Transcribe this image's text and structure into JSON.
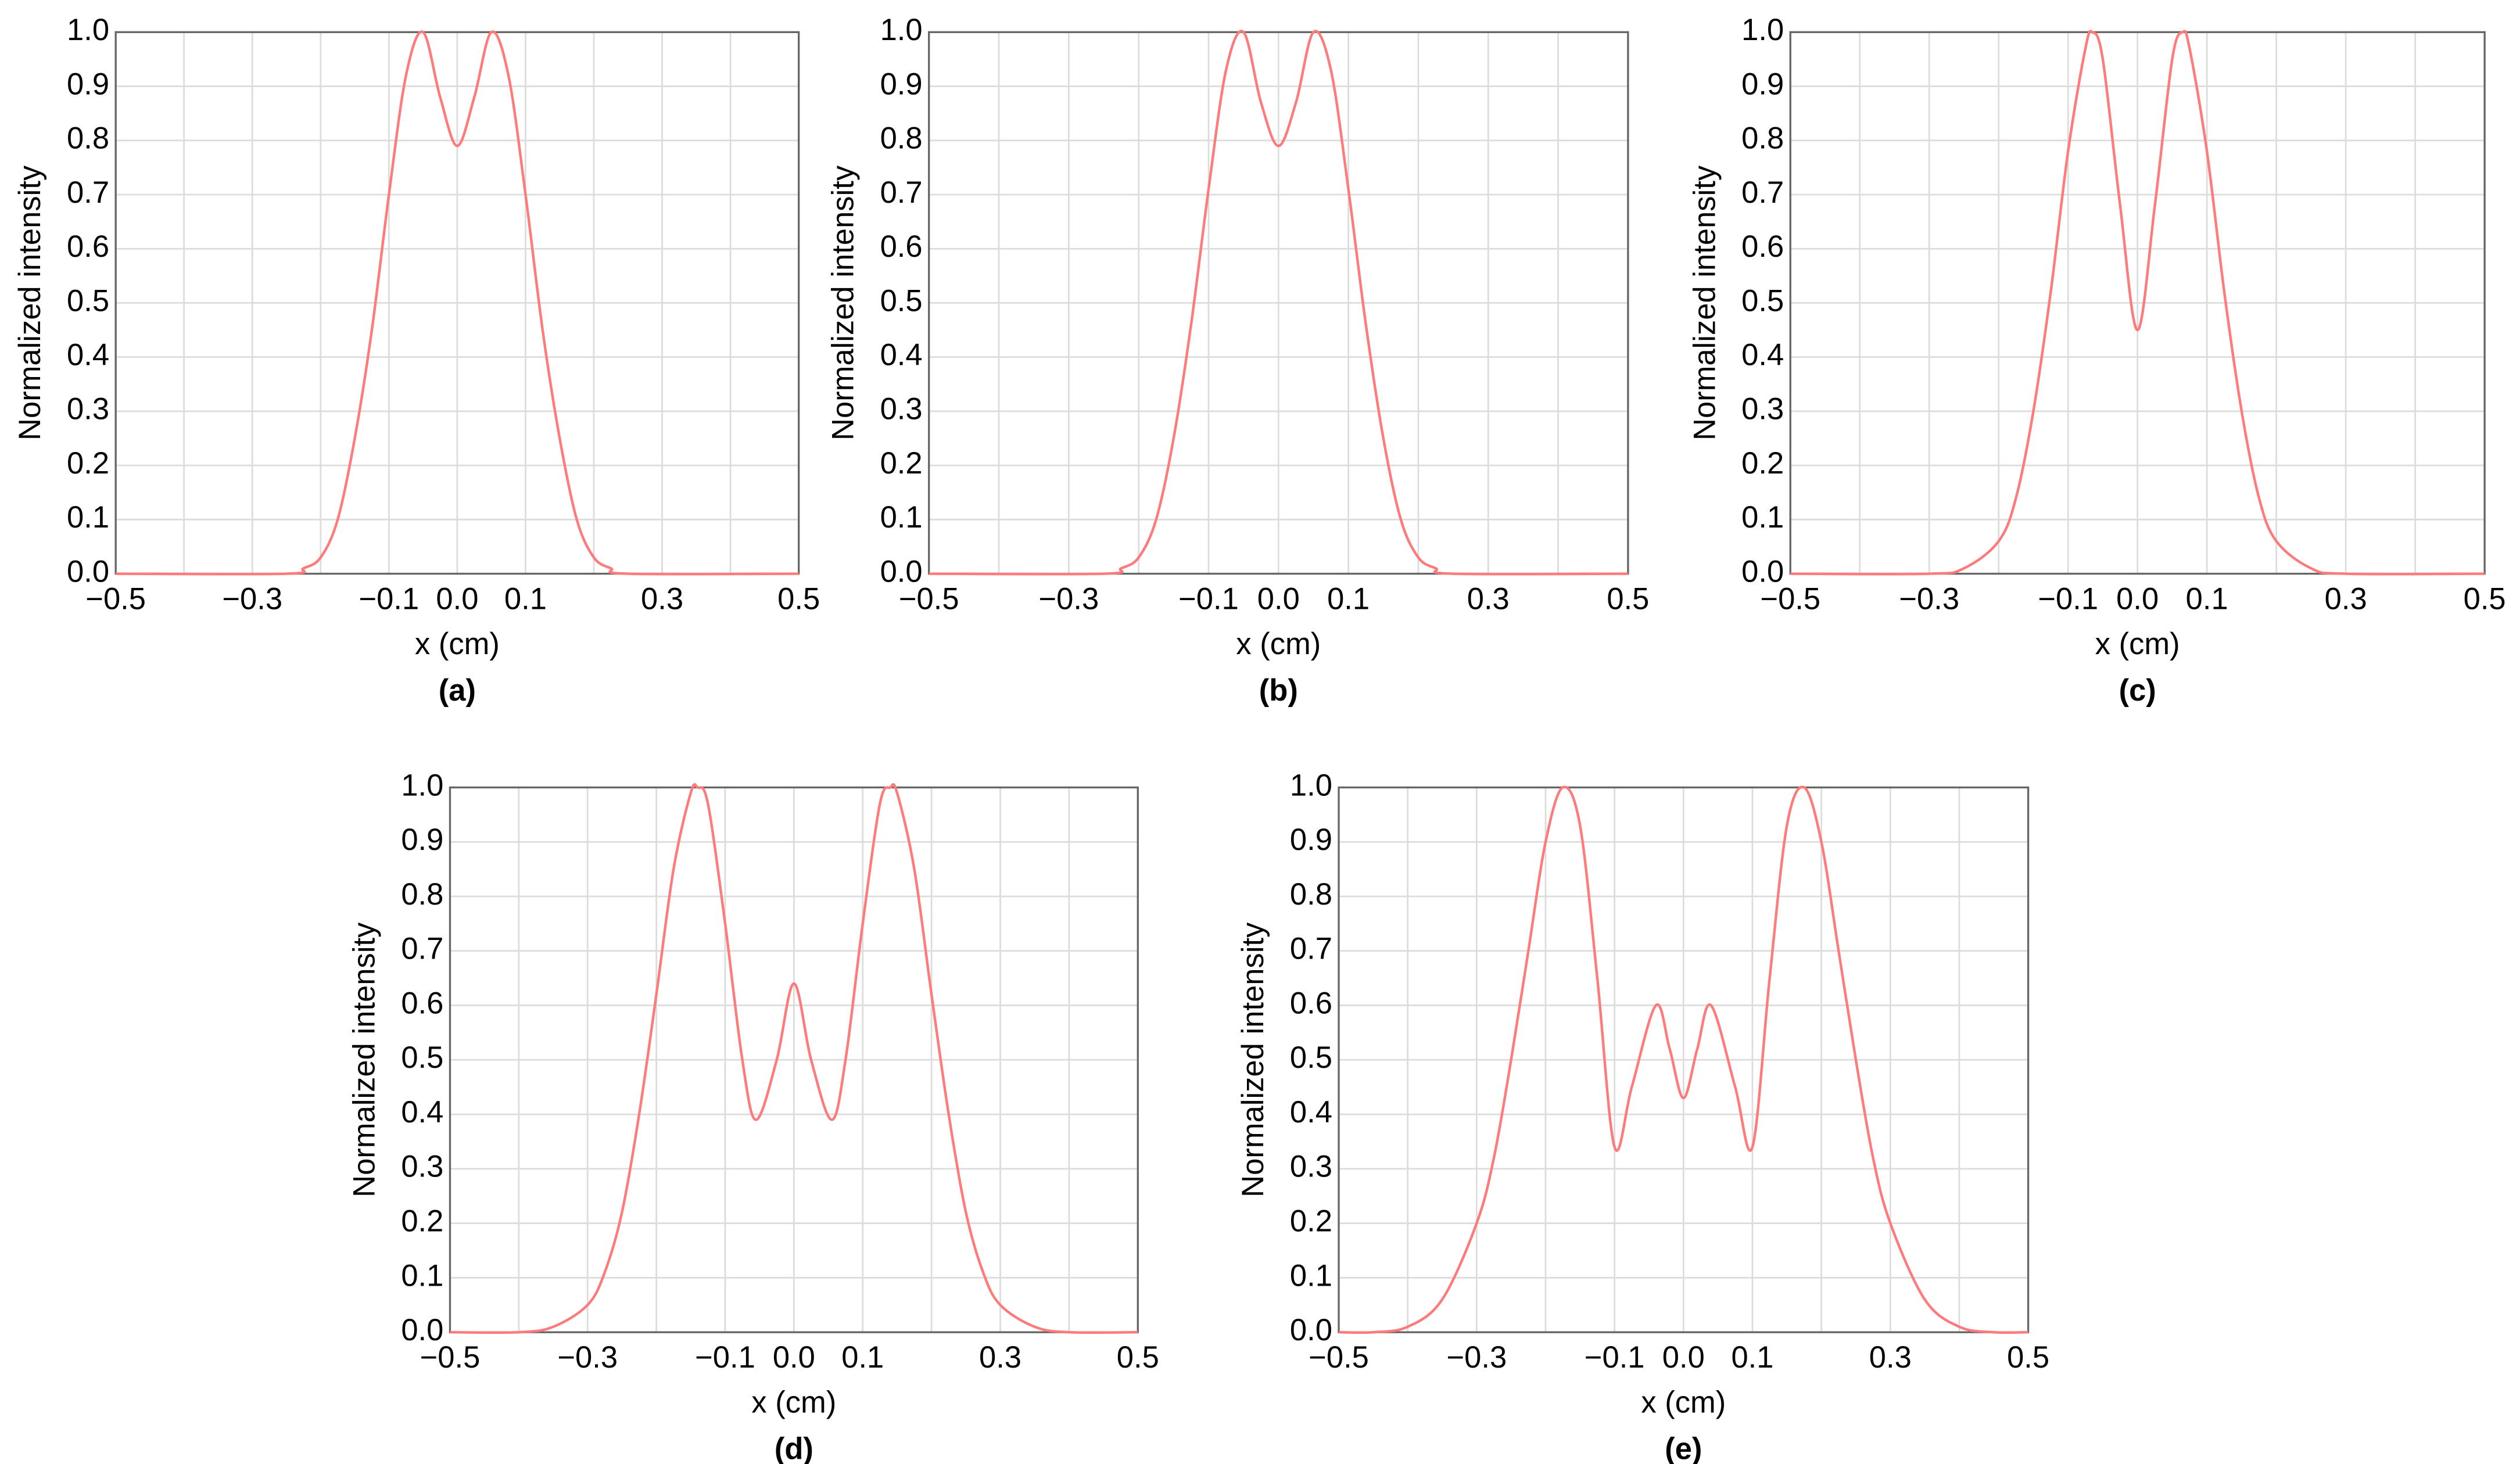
{
  "chart_data": [
    {
      "type": "line",
      "panel_label": "(a)",
      "x_label": "x (cm)",
      "y_label": "Normalized intensity",
      "x": [
        -0.5,
        -0.25,
        -0.225,
        -0.2,
        -0.175,
        -0.15,
        -0.125,
        -0.1,
        -0.075,
        -0.05,
        -0.025,
        0,
        0.025,
        0.05,
        0.075,
        0.1,
        0.125,
        0.15,
        0.175,
        0.2,
        0.225,
        0.25,
        0.5
      ],
      "series": [
        {
          "color": "#ff7a7a",
          "values": [
            0,
            0,
            0.01,
            0.03,
            0.1,
            0.25,
            0.45,
            0.7,
            0.92,
            1.0,
            0.88,
            0.79,
            0.88,
            1.0,
            0.92,
            0.7,
            0.45,
            0.25,
            0.1,
            0.03,
            0.01,
            0,
            0
          ]
        }
      ],
      "xlim": [
        -0.5,
        0.5
      ],
      "ylim": [
        0,
        1
      ],
      "xticks": [
        {
          "value": -0.5,
          "label": "−0.5"
        },
        {
          "value": -0.3,
          "label": "−0.3"
        },
        {
          "value": -0.1,
          "label": "−0.1"
        },
        {
          "value": 0,
          "label": "0.0"
        },
        0.1,
        0.3,
        0.5
      ],
      "x_minor_grid": [
        -0.4,
        -0.2,
        0.2,
        0.4
      ],
      "yticks": [
        {
          "value": 0,
          "label": "0.0"
        },
        0.1,
        0.2,
        0.3,
        0.4,
        0.5,
        0.6,
        0.7,
        0.8,
        0.9,
        {
          "value": 1,
          "label": "1.0"
        }
      ],
      "grid": true
    },
    {
      "type": "line",
      "panel_label": "(b)",
      "x_label": "x (cm)",
      "y_label": "Normalized intensity",
      "x": [
        -0.5,
        -0.25,
        -0.225,
        -0.2,
        -0.175,
        -0.15,
        -0.125,
        -0.1,
        -0.075,
        -0.05,
        -0.025,
        0,
        0.025,
        0.05,
        0.075,
        0.1,
        0.125,
        0.15,
        0.175,
        0.2,
        0.225,
        0.25,
        0.5
      ],
      "series": [
        {
          "color": "#ff7a7a",
          "values": [
            0,
            0,
            0.01,
            0.03,
            0.1,
            0.25,
            0.46,
            0.71,
            0.93,
            1.0,
            0.87,
            0.79,
            0.87,
            1.0,
            0.93,
            0.71,
            0.46,
            0.25,
            0.1,
            0.03,
            0.01,
            0,
            0
          ]
        }
      ],
      "xlim": [
        -0.5,
        0.5
      ],
      "ylim": [
        0,
        1
      ],
      "xticks": [
        {
          "value": -0.5,
          "label": "−0.5"
        },
        {
          "value": -0.3,
          "label": "−0.3"
        },
        {
          "value": -0.1,
          "label": "−0.1"
        },
        {
          "value": 0,
          "label": "0.0"
        },
        0.1,
        0.3,
        0.5
      ],
      "x_minor_grid": [
        -0.4,
        -0.2,
        0.2,
        0.4
      ],
      "yticks": [
        {
          "value": 0,
          "label": "0.0"
        },
        0.1,
        0.2,
        0.3,
        0.4,
        0.5,
        0.6,
        0.7,
        0.8,
        0.9,
        {
          "value": 1,
          "label": "1.0"
        }
      ],
      "grid": true
    },
    {
      "type": "line",
      "panel_label": "(c)",
      "x_label": "x (cm)",
      "y_label": "Normalized intensity",
      "x": [
        -0.5,
        -0.3,
        -0.25,
        -0.2,
        -0.175,
        -0.15,
        -0.125,
        -0.1,
        -0.075,
        -0.065,
        -0.05,
        -0.025,
        0,
        0.025,
        0.05,
        0.065,
        0.075,
        0.1,
        0.125,
        0.15,
        0.175,
        0.2,
        0.25,
        0.3,
        0.5
      ],
      "series": [
        {
          "color": "#ff7a7a",
          "values": [
            0,
            0,
            0.01,
            0.06,
            0.14,
            0.3,
            0.52,
            0.78,
            0.97,
            1.0,
            0.95,
            0.68,
            0.45,
            0.68,
            0.95,
            1.0,
            0.97,
            0.78,
            0.52,
            0.3,
            0.14,
            0.06,
            0.01,
            0,
            0
          ]
        }
      ],
      "xlim": [
        -0.5,
        0.5
      ],
      "ylim": [
        0,
        1
      ],
      "xticks": [
        {
          "value": -0.5,
          "label": "−0.5"
        },
        {
          "value": -0.3,
          "label": "−0.3"
        },
        {
          "value": -0.1,
          "label": "−0.1"
        },
        {
          "value": 0,
          "label": "0.0"
        },
        0.1,
        0.3,
        0.5
      ],
      "x_minor_grid": [
        -0.4,
        -0.2,
        0.2,
        0.4
      ],
      "yticks": [
        {
          "value": 0,
          "label": "0.0"
        },
        0.1,
        0.2,
        0.3,
        0.4,
        0.5,
        0.6,
        0.7,
        0.8,
        0.9,
        {
          "value": 1,
          "label": "1.0"
        }
      ],
      "grid": true
    },
    {
      "type": "line",
      "panel_label": "(d)",
      "x_label": "x (cm)",
      "y_label": "Normalized intensity",
      "x": [
        -0.5,
        -0.4,
        -0.35,
        -0.3,
        -0.275,
        -0.25,
        -0.225,
        -0.2,
        -0.175,
        -0.15,
        -0.14,
        -0.125,
        -0.1,
        -0.075,
        -0.055,
        -0.025,
        0,
        0.025,
        0.055,
        0.075,
        0.1,
        0.125,
        0.14,
        0.15,
        0.175,
        0.2,
        0.225,
        0.25,
        0.275,
        0.3,
        0.35,
        0.4,
        0.5
      ],
      "series": [
        {
          "color": "#ff7a7a",
          "values": [
            0,
            0,
            0.01,
            0.05,
            0.11,
            0.22,
            0.4,
            0.62,
            0.85,
            0.99,
            1.0,
            0.97,
            0.75,
            0.5,
            0.39,
            0.5,
            0.64,
            0.5,
            0.39,
            0.5,
            0.75,
            0.97,
            1.0,
            0.99,
            0.85,
            0.62,
            0.4,
            0.22,
            0.11,
            0.05,
            0.01,
            0,
            0
          ]
        }
      ],
      "xlim": [
        -0.5,
        0.5
      ],
      "ylim": [
        0,
        1
      ],
      "xticks": [
        {
          "value": -0.5,
          "label": "−0.5"
        },
        {
          "value": -0.3,
          "label": "−0.3"
        },
        {
          "value": -0.1,
          "label": "−0.1"
        },
        {
          "value": 0,
          "label": "0.0"
        },
        0.1,
        0.3,
        0.5
      ],
      "x_minor_grid": [
        -0.4,
        -0.2,
        0.2,
        0.4
      ],
      "yticks": [
        {
          "value": 0,
          "label": "0.0"
        },
        0.1,
        0.2,
        0.3,
        0.4,
        0.5,
        0.6,
        0.7,
        0.8,
        0.9,
        {
          "value": 1,
          "label": "1.0"
        }
      ],
      "grid": true
    },
    {
      "type": "line",
      "panel_label": "(e)",
      "x_label": "x (cm)",
      "y_label": "Normalized intensity",
      "x": [
        -0.5,
        -0.45,
        -0.4,
        -0.35,
        -0.3,
        -0.275,
        -0.25,
        -0.225,
        -0.2,
        -0.175,
        -0.15,
        -0.125,
        -0.1,
        -0.075,
        -0.04,
        -0.02,
        0,
        0.02,
        0.04,
        0.075,
        0.1,
        0.125,
        0.15,
        0.175,
        0.2,
        0.225,
        0.25,
        0.275,
        0.3,
        0.35,
        0.4,
        0.45,
        0.5
      ],
      "series": [
        {
          "color": "#ff7a7a",
          "values": [
            0,
            0,
            0.01,
            0.06,
            0.2,
            0.32,
            0.5,
            0.7,
            0.9,
            1.0,
            0.93,
            0.65,
            0.34,
            0.45,
            0.6,
            0.52,
            0.43,
            0.52,
            0.6,
            0.45,
            0.34,
            0.65,
            0.93,
            1.0,
            0.9,
            0.7,
            0.5,
            0.32,
            0.2,
            0.06,
            0.01,
            0,
            0
          ]
        }
      ],
      "xlim": [
        -0.5,
        0.5
      ],
      "ylim": [
        0,
        1
      ],
      "xticks": [
        {
          "value": -0.5,
          "label": "−0.5"
        },
        {
          "value": -0.3,
          "label": "−0.3"
        },
        {
          "value": -0.1,
          "label": "−0.1"
        },
        {
          "value": 0,
          "label": "0.0"
        },
        0.1,
        0.3,
        0.5
      ],
      "x_minor_grid": [
        -0.4,
        -0.2,
        0.2,
        0.4
      ],
      "yticks": [
        {
          "value": 0,
          "label": "0.0"
        },
        0.1,
        0.2,
        0.3,
        0.4,
        0.5,
        0.6,
        0.7,
        0.8,
        0.9,
        {
          "value": 1,
          "label": "1.0"
        }
      ],
      "grid": true
    }
  ]
}
